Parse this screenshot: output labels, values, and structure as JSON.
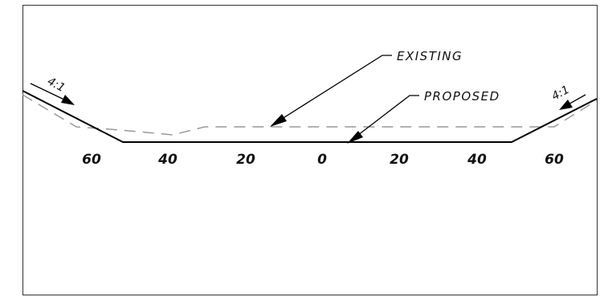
{
  "callouts": {
    "existing": "EXISTING",
    "proposed": "PROPOSED"
  },
  "slopes": {
    "left": "4:1",
    "right": "4:1"
  },
  "stations": [
    "60",
    "40",
    "20",
    "0",
    "20",
    "40",
    "60"
  ],
  "colors": {
    "frame": "#333333",
    "proposed_line": "#000000",
    "existing_line": "#999999",
    "text": "#111111"
  }
}
